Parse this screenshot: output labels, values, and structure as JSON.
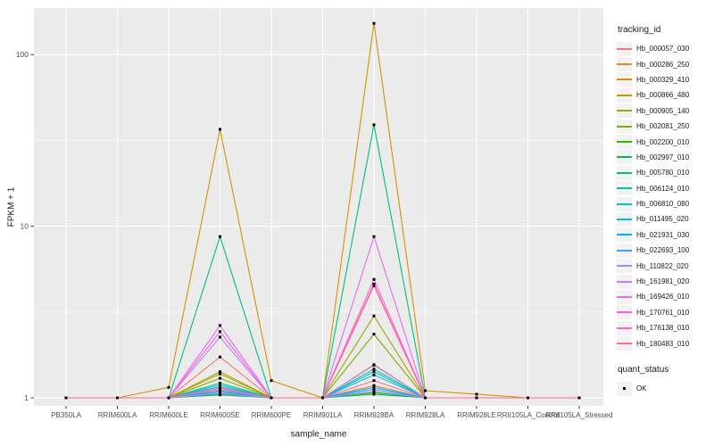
{
  "figure": {
    "y_axis_title": "FPKM + 1",
    "x_axis_title": "sample_name",
    "legend_title": "tracking_id",
    "legend2_title": "quant_status",
    "legend2_items": [
      {
        "label": "OK",
        "marker": "black-square"
      }
    ],
    "panel_bg": "#EBEBEB",
    "gridline_color": "#FFFFFF",
    "axis_text_color": "#4D4D4D",
    "point_color": "#000000"
  },
  "chart_data": {
    "type": "line",
    "title": "",
    "xlabel": "sample_name",
    "ylabel": "FPKM + 1",
    "y_scale": "log10",
    "ylim": [
      1,
      200
    ],
    "y_major_ticks": [
      1,
      10,
      100
    ],
    "y_minor_ticks": [
      3.162,
      31.62
    ],
    "grid": true,
    "legend_position": "right",
    "legend_title": "tracking_id",
    "point_legend": {
      "title": "quant_status",
      "labels": [
        "OK"
      ]
    },
    "categories": [
      "PB350LA",
      "RRIM600LA",
      "RRIM600LE",
      "RRIM600SE",
      "RRIM600PE",
      "RRIM901LA",
      "RRIM928BA",
      "RRIM928LA",
      "RRIM928LE",
      "RRII105LA_Control",
      "RRII105LA_Stressed"
    ],
    "series": [
      {
        "name": "Hb_000057_030",
        "color": "#F8766D",
        "values": [
          1,
          1,
          1,
          1.73,
          1,
          1,
          4.5,
          1,
          1,
          1,
          1
        ]
      },
      {
        "name": "Hb_000286_250",
        "color": "#EA8331",
        "values": [
          1,
          1,
          1,
          1.08,
          1,
          1,
          1.18,
          1,
          1,
          1,
          1
        ]
      },
      {
        "name": "Hb_000329_410",
        "color": "#D89000",
        "values": [
          1,
          1,
          1.15,
          36.7,
          1.26,
          1,
          152,
          1.1,
          1.05,
          1,
          1
        ]
      },
      {
        "name": "Hb_000866_480",
        "color": "#C09B00",
        "values": [
          1,
          1,
          1,
          1.38,
          1,
          1,
          1.56,
          1,
          1,
          1,
          1
        ]
      },
      {
        "name": "Hb_000905_140",
        "color": "#A3A500",
        "values": [
          1,
          1,
          1,
          1.42,
          1,
          1,
          3.0,
          1,
          1,
          1,
          1
        ]
      },
      {
        "name": "Hb_002081_250",
        "color": "#7CAE00",
        "values": [
          1,
          1,
          1,
          1.3,
          1,
          1,
          2.35,
          1,
          1,
          1,
          1
        ]
      },
      {
        "name": "Hb_002200_010",
        "color": "#39B600",
        "values": [
          1,
          1,
          1,
          1.05,
          1,
          1,
          1.07,
          1,
          1,
          1,
          1
        ]
      },
      {
        "name": "Hb_002997_010",
        "color": "#00BB4E",
        "values": [
          1,
          1,
          1,
          1.04,
          1,
          1,
          1.05,
          1,
          1,
          1,
          1
        ]
      },
      {
        "name": "Hb_005780_010",
        "color": "#00BF7D",
        "values": [
          1,
          1,
          1,
          8.7,
          1,
          1,
          39,
          1,
          1,
          1,
          1
        ]
      },
      {
        "name": "Hb_006124_010",
        "color": "#00C1A3",
        "values": [
          1,
          1,
          1,
          1.22,
          1,
          1,
          1.47,
          1,
          1,
          1,
          1
        ]
      },
      {
        "name": "Hb_006810_080",
        "color": "#00BFC4",
        "values": [
          1,
          1,
          1,
          1.19,
          1,
          1,
          1.42,
          1,
          1,
          1,
          1
        ]
      },
      {
        "name": "Hb_011495_020",
        "color": "#00BAE0",
        "values": [
          1,
          1,
          1,
          1.16,
          1,
          1,
          1.36,
          1,
          1,
          1,
          1
        ]
      },
      {
        "name": "Hb_021931_030",
        "color": "#00B0F6",
        "values": [
          1,
          1,
          1,
          1.1,
          1,
          1,
          1.15,
          1,
          1,
          1,
          1
        ]
      },
      {
        "name": "Hb_022693_100",
        "color": "#35A2FF",
        "values": [
          1,
          1,
          1,
          1.08,
          1,
          1,
          1.12,
          1,
          1,
          1,
          1
        ]
      },
      {
        "name": "Hb_110822_020",
        "color": "#9590FF",
        "values": [
          1,
          1,
          1,
          1.06,
          1,
          1,
          1.09,
          1,
          1,
          1,
          1
        ]
      },
      {
        "name": "Hb_161981_020",
        "color": "#C77CFF",
        "values": [
          1,
          1,
          1,
          2.26,
          1,
          1,
          1.55,
          1,
          1,
          1,
          1
        ]
      },
      {
        "name": "Hb_169426_010",
        "color": "#E76BF3",
        "values": [
          1,
          1,
          1,
          2.64,
          1,
          1,
          8.7,
          1,
          1,
          1,
          1
        ]
      },
      {
        "name": "Hb_170761_010",
        "color": "#FA62DB",
        "values": [
          1,
          1,
          1,
          2.43,
          1,
          1,
          4.9,
          1,
          1,
          1,
          1
        ]
      },
      {
        "name": "Hb_176138_010",
        "color": "#FF62BC",
        "values": [
          1,
          1,
          1,
          1.14,
          1,
          1,
          4.6,
          1,
          1,
          1,
          1
        ]
      },
      {
        "name": "Hb_180483_010",
        "color": "#FF6A98",
        "values": [
          1,
          1,
          1,
          1.12,
          1,
          1,
          1.26,
          1,
          1,
          1,
          1
        ]
      }
    ]
  }
}
